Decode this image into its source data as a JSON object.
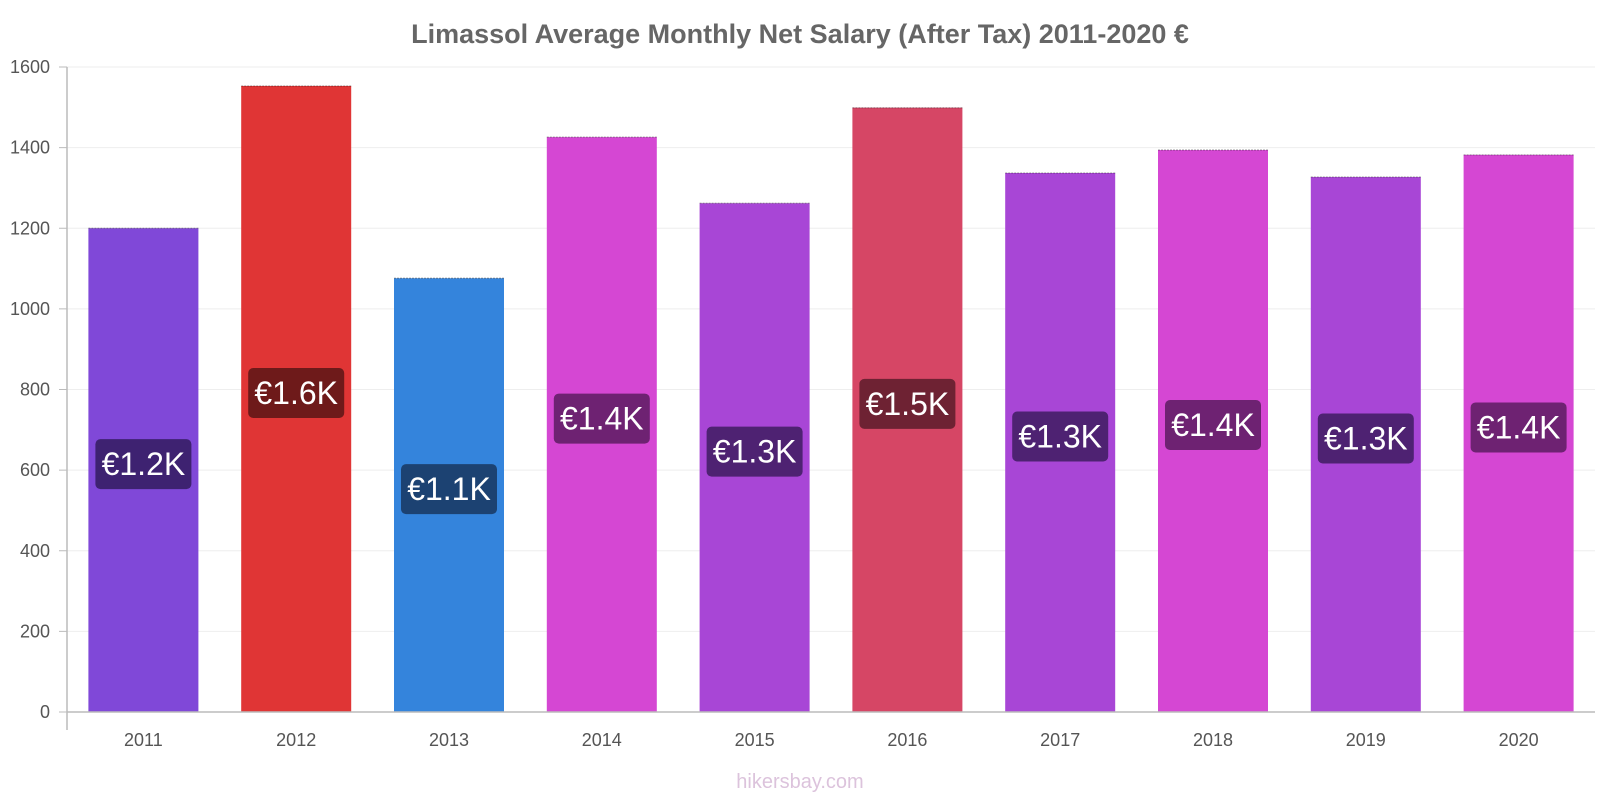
{
  "chart_data": {
    "type": "bar",
    "title": "Limassol Average Monthly Net Salary (After Tax) 2011-2020 €",
    "categories": [
      "2011",
      "2012",
      "2013",
      "2014",
      "2015",
      "2016",
      "2017",
      "2018",
      "2019",
      "2020"
    ],
    "values": [
      1200,
      1553,
      1076,
      1426,
      1262,
      1499,
      1337,
      1394,
      1327,
      1382
    ],
    "data_labels": [
      "€1.2K",
      "€1.6K",
      "€1.1K",
      "€1.4K",
      "€1.3K",
      "€1.5K",
      "€1.3K",
      "€1.4K",
      "€1.3K",
      "€1.4K"
    ],
    "bar_colors": [
      "#8048d8",
      "#e03535",
      "#3484dc",
      "#d547d3",
      "#a846d6",
      "#d64665",
      "#a846d6",
      "#d547d3",
      "#a846d6",
      "#d547d3"
    ],
    "label_colors": [
      "#3e2271",
      "#6e1a1a",
      "#1c4272",
      "#6e2272",
      "#4e2272",
      "#6e2233",
      "#4e2272",
      "#6e2272",
      "#4e2272",
      "#6e2272"
    ],
    "y_ticks": [
      "0",
      "200",
      "400",
      "600",
      "800",
      "1000",
      "1200",
      "1400",
      "1600"
    ],
    "ylim": [
      0,
      1600
    ],
    "xlabel": "",
    "ylabel": "",
    "grid": true
  },
  "watermark": "hikersbay.com"
}
